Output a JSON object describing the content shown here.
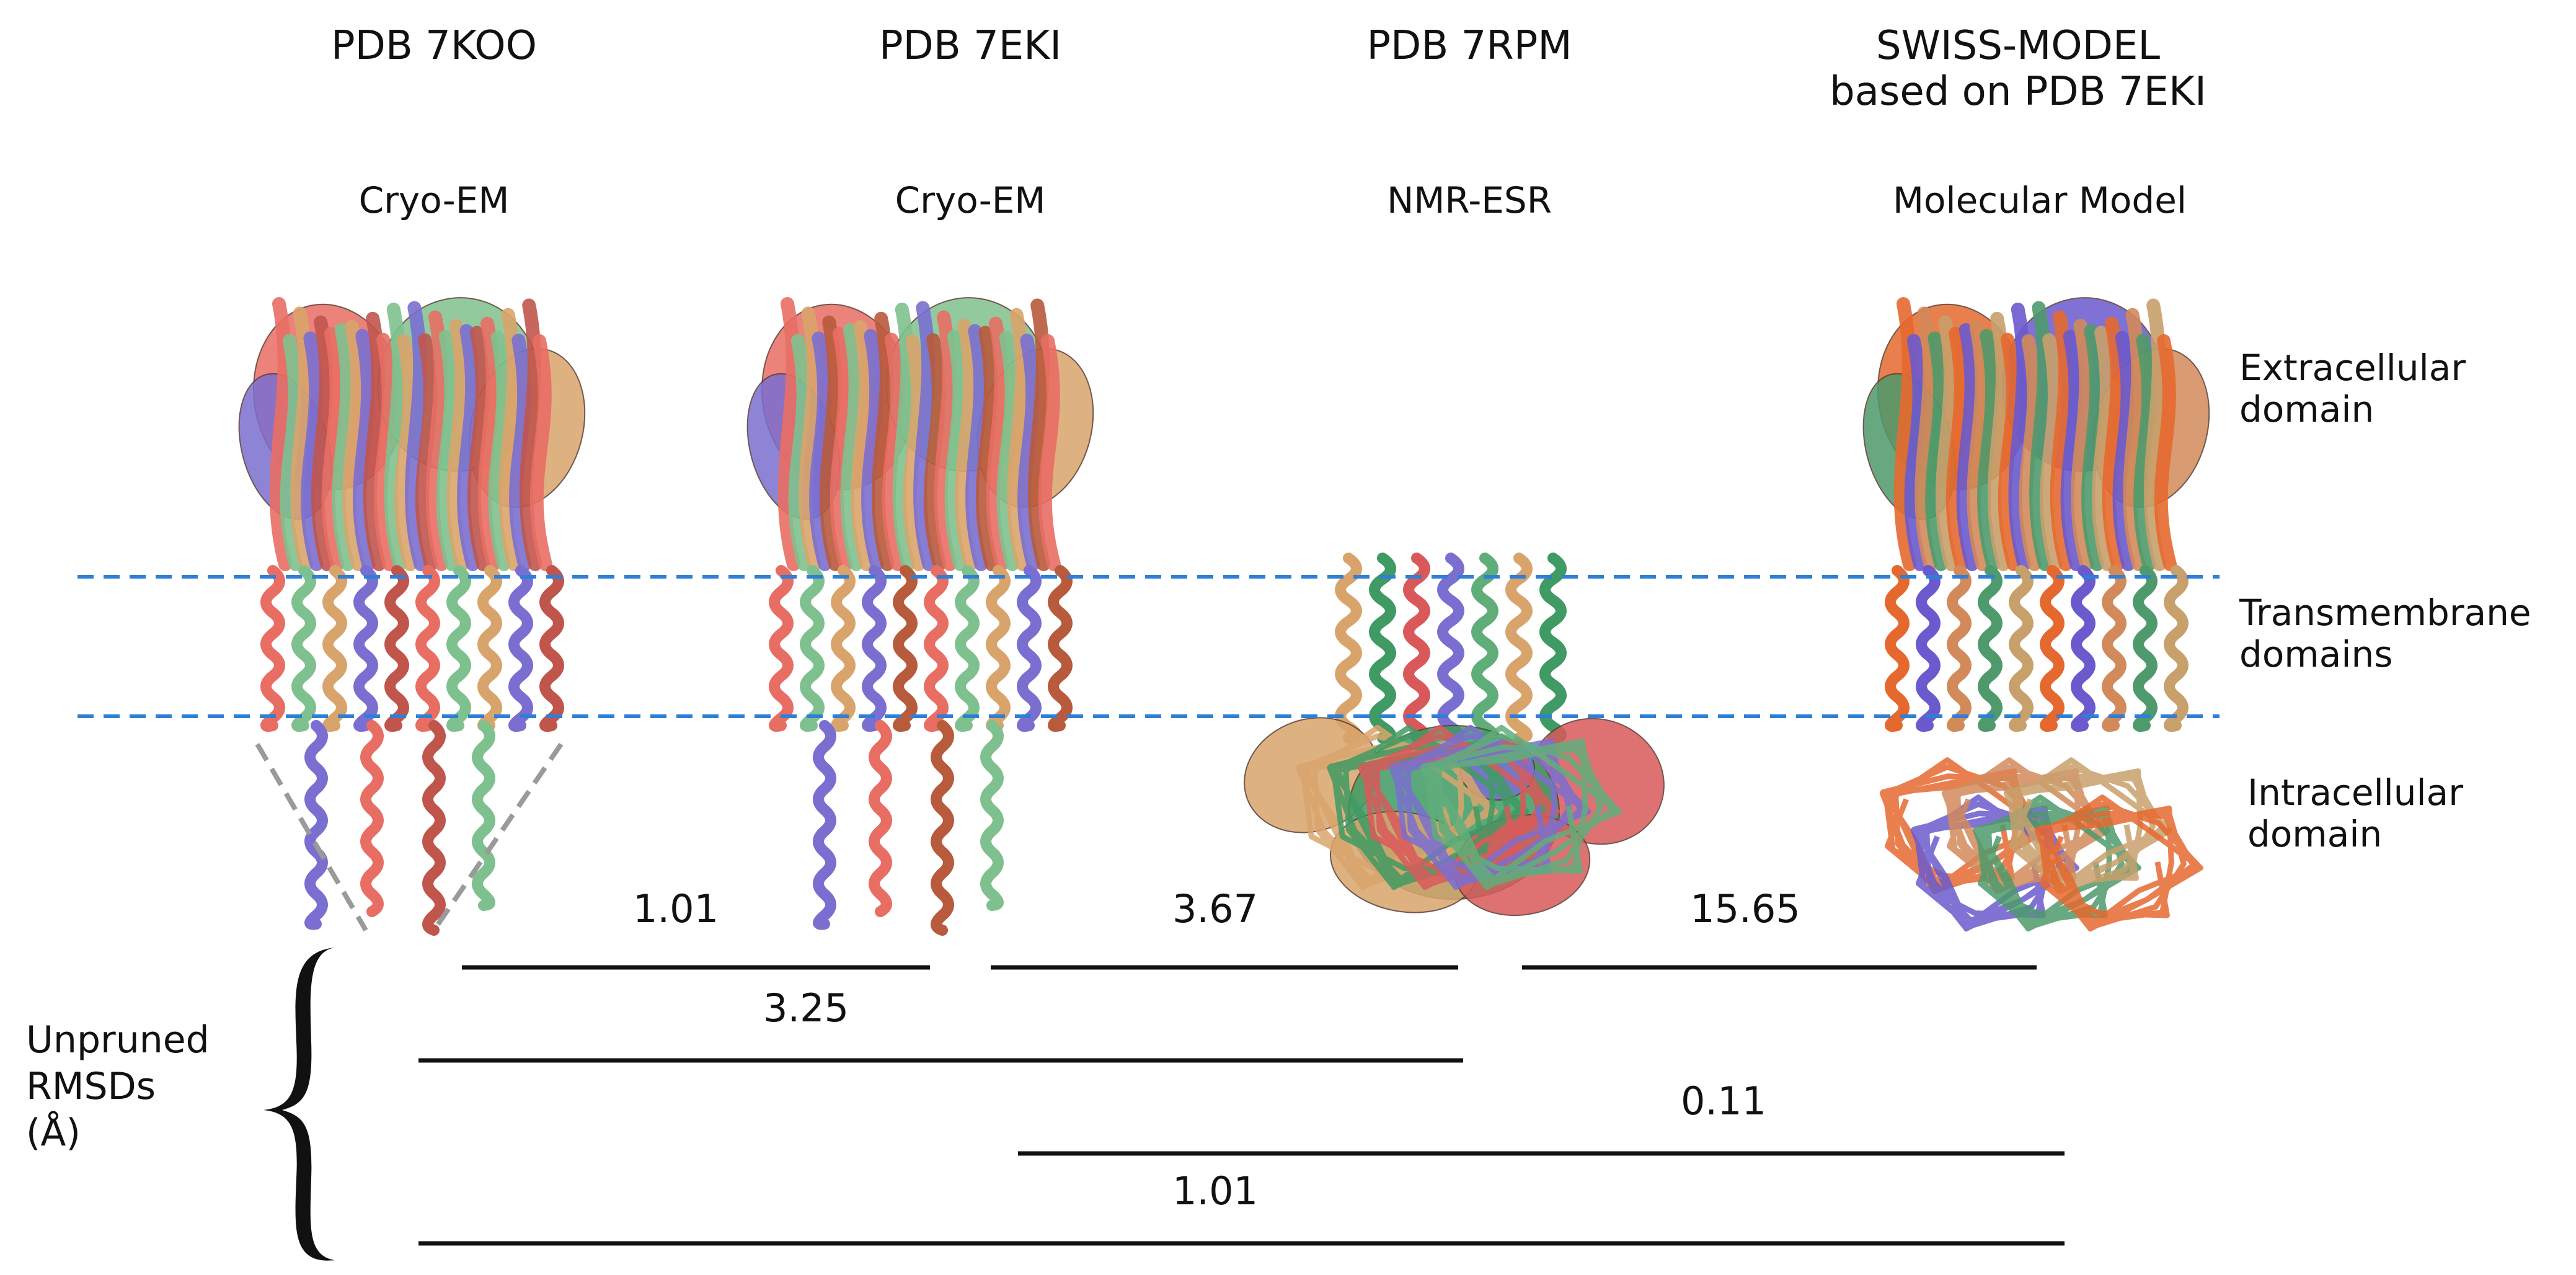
{
  "structures": [
    {
      "source": "PDB 7KOO",
      "source_line2": "",
      "method": "Cryo-EM",
      "palette": [
        "#e86e64",
        "#7fc18e",
        "#d9a46c",
        "#7a6fd0",
        "#c0554c"
      ]
    },
    {
      "source": "PDB 7EKI",
      "source_line2": "",
      "method": "Cryo-EM",
      "palette": [
        "#e86e64",
        "#7fc18e",
        "#d9a46c",
        "#7a6fd0",
        "#b85a3c"
      ]
    },
    {
      "source": "PDB 7RPM",
      "source_line2": "",
      "method": "NMR-ESR",
      "palette": [
        "#d9a46c",
        "#3f9a63",
        "#d9595a",
        "#7a6fd0",
        "#5fae7a"
      ]
    },
    {
      "source": "SWISS-MODEL",
      "source_line2": "based on PDB 7EKI",
      "method": "Molecular Model",
      "palette": [
        "#e5692f",
        "#6a5acd",
        "#d28a5a",
        "#4e9a6c",
        "#c8a06c"
      ]
    }
  ],
  "domains": {
    "extracellular": [
      "Extracellular",
      "domain"
    ],
    "transmembrane": [
      "Transmembrane",
      "domains"
    ],
    "intracellular": [
      "Intracellular",
      "domain"
    ]
  },
  "rmsd": {
    "label_lines": [
      "Unpruned",
      "RMSDs",
      "(Å)"
    ],
    "comparisons": [
      {
        "from": "PDB 7KOO",
        "to": "PDB 7EKI",
        "value": "1.01"
      },
      {
        "from": "PDB 7EKI",
        "to": "PDB 7RPM",
        "value": "3.67"
      },
      {
        "from": "PDB 7RPM",
        "to": "SWISS-MODEL",
        "value": "15.65"
      },
      {
        "from": "PDB 7KOO",
        "to": "PDB 7RPM",
        "value": "3.25"
      },
      {
        "from": "PDB 7EKI",
        "to": "SWISS-MODEL",
        "value": "0.11"
      },
      {
        "from": "PDB 7KOO",
        "to": "SWISS-MODEL",
        "value": "1.01"
      }
    ]
  },
  "colors": {
    "membrane_line": "#2f7fd6",
    "rmsd_line": "#111111"
  }
}
